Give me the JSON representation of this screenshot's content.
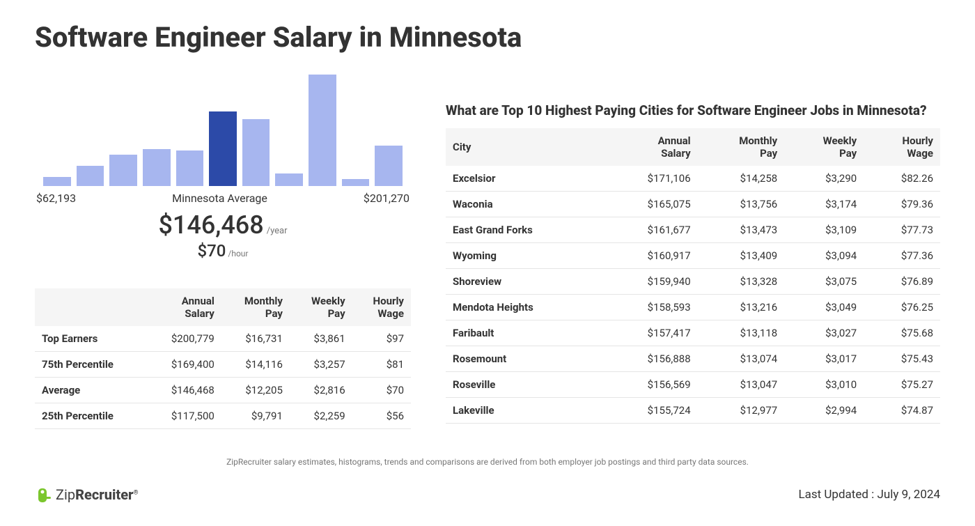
{
  "page_title": "Software Engineer Salary in Minnesota",
  "histogram": {
    "type": "histogram",
    "bar_color": "#a7b6ef",
    "highlight_color": "#2c4aa8",
    "background_color": "#ffffff",
    "bar_heights_pct": [
      8,
      18,
      28,
      33,
      32,
      67,
      60,
      11,
      100,
      6,
      36
    ],
    "highlight_index": 5,
    "x_min_label": "$62,193",
    "x_max_label": "$201,270",
    "center_label": "Minnesota Average"
  },
  "averages": {
    "annual": "$146,468",
    "annual_unit": "/year",
    "hourly": "$70",
    "hourly_unit": "/hour"
  },
  "percentiles_table": {
    "columns": [
      "",
      "Annual Salary",
      "Monthly Pay",
      "Weekly Pay",
      "Hourly Wage"
    ],
    "rows": [
      [
        "Top Earners",
        "$200,779",
        "$16,731",
        "$3,861",
        "$97"
      ],
      [
        "75th Percentile",
        "$169,400",
        "$14,116",
        "$3,257",
        "$81"
      ],
      [
        "Average",
        "$146,468",
        "$12,205",
        "$2,816",
        "$70"
      ],
      [
        "25th Percentile",
        "$117,500",
        "$9,791",
        "$2,259",
        "$56"
      ]
    ],
    "header_bg": "#f5f5f5",
    "row_border": "#e5e5e5"
  },
  "cities_section": {
    "heading": "What are Top 10 Highest Paying Cities for Software Engineer Jobs in Minnesota?",
    "columns": [
      "City",
      "Annual Salary",
      "Monthly Pay",
      "Weekly Pay",
      "Hourly Wage"
    ],
    "rows": [
      [
        "Excelsior",
        "$171,106",
        "$14,258",
        "$3,290",
        "$82.26"
      ],
      [
        "Waconia",
        "$165,075",
        "$13,756",
        "$3,174",
        "$79.36"
      ],
      [
        "East Grand Forks",
        "$161,677",
        "$13,473",
        "$3,109",
        "$77.73"
      ],
      [
        "Wyoming",
        "$160,917",
        "$13,409",
        "$3,094",
        "$77.36"
      ],
      [
        "Shoreview",
        "$159,940",
        "$13,328",
        "$3,075",
        "$76.89"
      ],
      [
        "Mendota Heights",
        "$158,593",
        "$13,216",
        "$3,049",
        "$76.25"
      ],
      [
        "Faribault",
        "$157,417",
        "$13,118",
        "$3,027",
        "$75.68"
      ],
      [
        "Rosemount",
        "$156,888",
        "$13,074",
        "$3,017",
        "$75.43"
      ],
      [
        "Roseville",
        "$156,569",
        "$13,047",
        "$3,010",
        "$75.27"
      ],
      [
        "Lakeville",
        "$155,724",
        "$12,977",
        "$2,994",
        "$74.87"
      ]
    ],
    "header_bg": "#f5f5f5",
    "row_border": "#e5e5e5"
  },
  "disclaimer": "ZipRecruiter salary estimates, histograms, trends and comparisons are derived from both employer job postings and third party data sources.",
  "logo": {
    "brand_zip": "Zip",
    "brand_recruit": "Recruiter",
    "mark_color": "#7bc62d"
  },
  "last_updated_label": "Last Updated : ",
  "last_updated_value": "July 9, 2024"
}
